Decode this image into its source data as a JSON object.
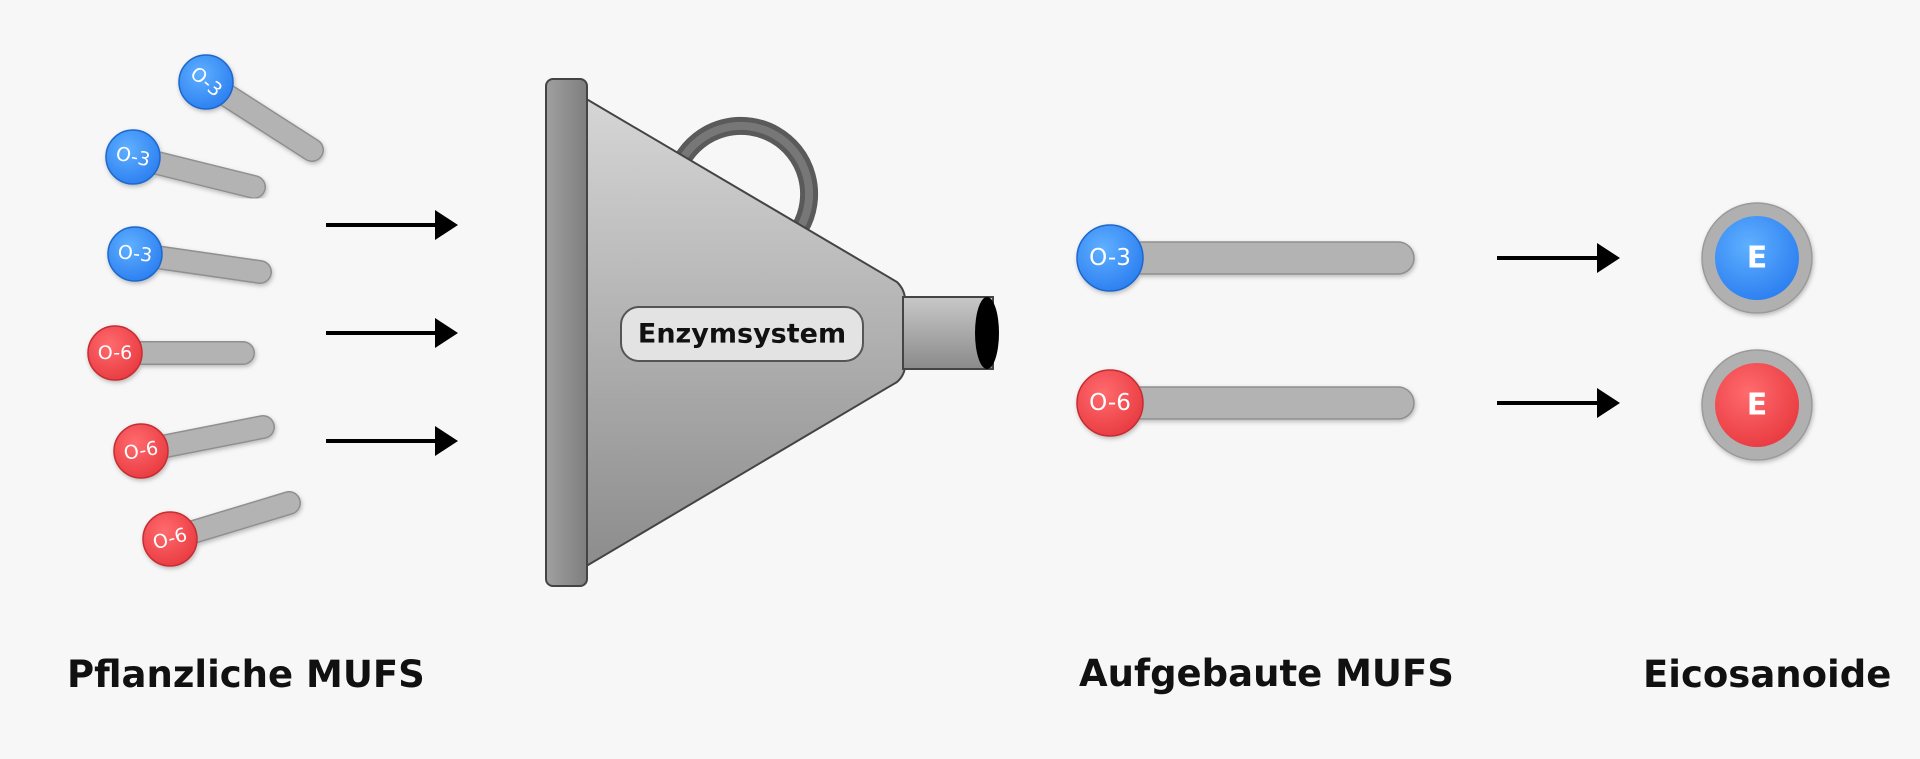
{
  "labels": {
    "plant_mufs": "Pflanzliche MUFS",
    "built_mufs": "Aufgebaute MUFS",
    "eicosanoids": "Eicosanoide",
    "enzyme_system": "Enzymsystem"
  },
  "molecules": {
    "omega3": "O-3",
    "omega6": "O-6",
    "eicosanoid": "E"
  },
  "colors": {
    "omega3": "#3a8ef5",
    "omega6": "#f0474b",
    "tail": "#b3b3b3",
    "funnel": "#a8a8a8"
  }
}
